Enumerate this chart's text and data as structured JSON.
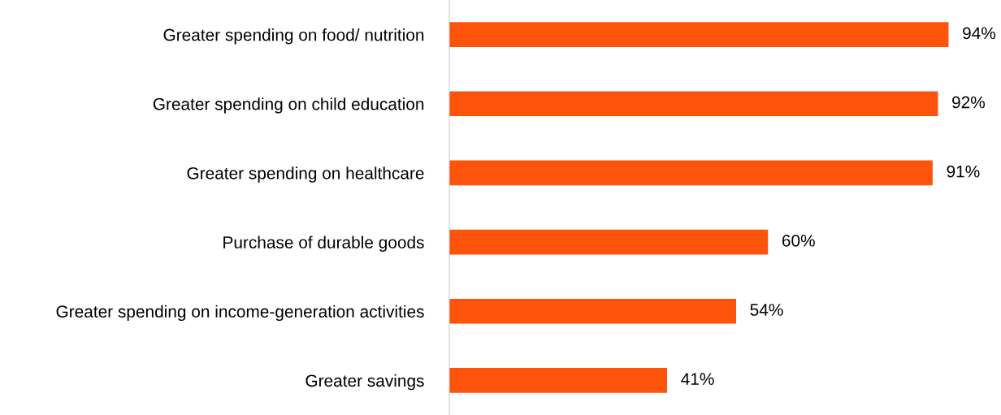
{
  "chart_data": {
    "type": "bar",
    "orientation": "horizontal",
    "categories": [
      "Greater spending on food/ nutrition",
      "Greater spending on child education",
      "Greater spending on healthcare",
      "Purchase of durable goods",
      "Greater spending on income-generation activities",
      "Greater savings"
    ],
    "values": [
      94,
      92,
      91,
      60,
      54,
      41
    ],
    "value_labels": [
      "94%",
      "92%",
      "91%",
      "60%",
      "54%",
      "41%"
    ],
    "color": "#fe530b",
    "grid": false,
    "legend": false
  }
}
